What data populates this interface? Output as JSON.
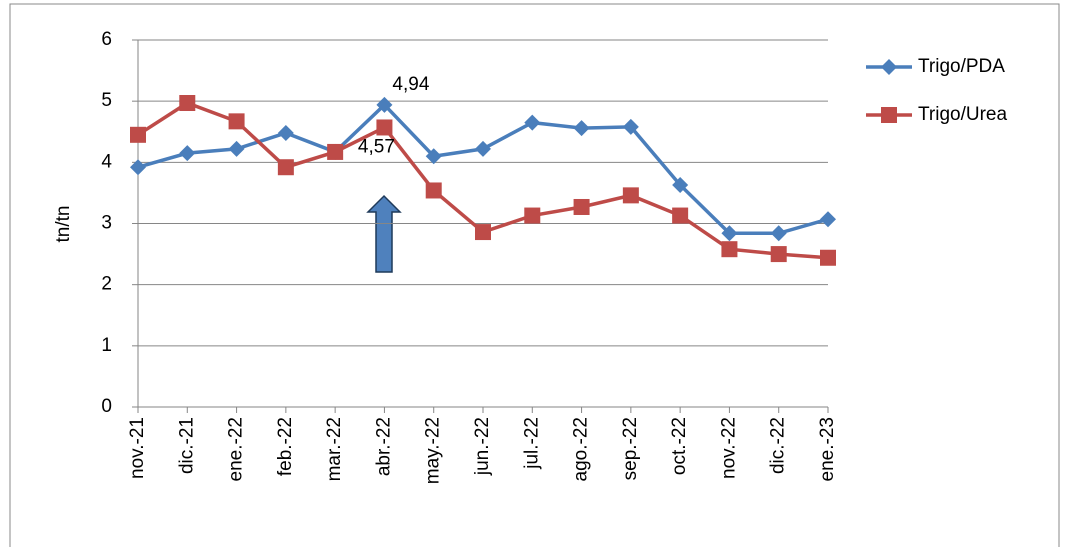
{
  "chart_data": {
    "type": "line",
    "y_label": "tn/tn",
    "categories": [
      "nov.-21",
      "dic.-21",
      "ene.-22",
      "feb.-22",
      "mar.-22",
      "abr.-22",
      "may.-22",
      "jun.-22",
      "jul.-22",
      "ago.-22",
      "sep.-22",
      "oct.-22",
      "nov.-22",
      "dic.-22",
      "ene.-23"
    ],
    "series": [
      {
        "name": "Trigo/PDA",
        "color": "#4a7ebb",
        "marker": "diamond",
        "values": [
          3.92,
          4.15,
          4.22,
          4.48,
          4.17,
          4.94,
          4.1,
          4.22,
          4.65,
          4.56,
          4.58,
          3.63,
          2.84,
          2.84,
          3.07
        ],
        "value_labels": [
          null,
          null,
          null,
          null,
          null,
          "4,94",
          null,
          null,
          null,
          null,
          null,
          null,
          null,
          null,
          null
        ]
      },
      {
        "name": "Trigo/Urea",
        "color": "#be4b48",
        "marker": "square",
        "values": [
          4.45,
          4.97,
          4.67,
          3.92,
          4.17,
          4.57,
          3.54,
          2.86,
          3.13,
          3.27,
          3.46,
          3.13,
          2.58,
          2.5,
          2.44
        ],
        "value_labels": [
          null,
          null,
          null,
          null,
          null,
          "4,57",
          null,
          null,
          null,
          null,
          null,
          null,
          null,
          null,
          null
        ]
      }
    ],
    "ylim": [
      0,
      6
    ],
    "yticks": [
      0,
      1,
      2,
      3,
      4,
      5,
      6
    ],
    "grid": true,
    "legend": "right"
  }
}
